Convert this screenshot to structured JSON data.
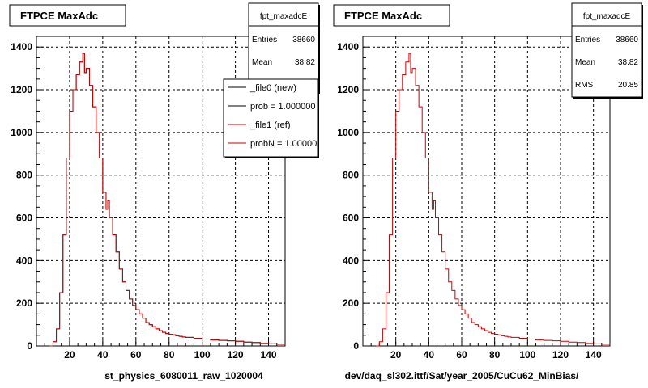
{
  "panels": [
    {
      "title": "FTPCE MaxAdc",
      "caption": "st_physics_6080011_raw_1020004",
      "stats": {
        "name": "fpt_maxadcE",
        "rows": [
          {
            "label": "Entries",
            "value": "38660"
          },
          {
            "label": "Mean",
            "value": "38.82"
          }
        ]
      },
      "legend": [
        {
          "label": "_file0 (new)",
          "color": "#000000"
        },
        {
          "label": "prob = 1.000000",
          "color": "#000000"
        },
        {
          "label": "_file1 (ref)",
          "color": "#cc0000"
        },
        {
          "label": "probN = 1.000000",
          "color": "#cc0000"
        }
      ]
    },
    {
      "title": "FTPCE MaxAdc",
      "caption": "dev/daq_sl302.ittf/Sat/year_2005/CuCu62_MinBias/",
      "stats": {
        "name": "fpt_maxadcE",
        "rows": [
          {
            "label": "Entries",
            "value": "38660"
          },
          {
            "label": "Mean",
            "value": "38.82"
          },
          {
            "label": "RMS",
            "value": "20.85"
          }
        ]
      },
      "legend": []
    }
  ],
  "colors": {
    "histogram": "#cc0000",
    "grid": "#000000",
    "frame": "#000000"
  },
  "chart_data": [
    {
      "type": "line",
      "title": "FTPCE MaxAdc",
      "xlabel": "st_physics_6080011_raw_1020004",
      "ylabel": "",
      "xlim": [
        0,
        150
      ],
      "ylim": [
        0,
        1450
      ],
      "x_ticks": [
        20,
        40,
        60,
        80,
        100,
        120,
        140
      ],
      "y_ticks": [
        0,
        200,
        400,
        600,
        800,
        1000,
        1200,
        1400
      ],
      "grid": true,
      "legend_position": "top-right",
      "series": [
        {
          "name": "_file0 (new)",
          "color": "#000000",
          "x": [
            8,
            10,
            12,
            14,
            16,
            18,
            20,
            22,
            24,
            26,
            28,
            29,
            30,
            32,
            34,
            36,
            38,
            40,
            42,
            43,
            44,
            46,
            48,
            50,
            52,
            54,
            56,
            58,
            60,
            62,
            64,
            66,
            68,
            70,
            72,
            74,
            76,
            78,
            80,
            82,
            84,
            86,
            88,
            90,
            95,
            100,
            105,
            110,
            115,
            120,
            125,
            130,
            135,
            140,
            145,
            150
          ],
          "y": [
            0,
            20,
            80,
            250,
            520,
            880,
            1100,
            1200,
            1270,
            1330,
            1370,
            1280,
            1300,
            1220,
            1120,
            1000,
            880,
            720,
            640,
            680,
            600,
            520,
            440,
            360,
            300,
            260,
            220,
            190,
            170,
            150,
            130,
            110,
            100,
            90,
            80,
            72,
            64,
            58,
            55,
            52,
            48,
            45,
            42,
            40,
            36,
            32,
            28,
            26,
            24,
            22,
            18,
            16,
            12,
            10,
            8,
            6
          ]
        },
        {
          "name": "_file1 (ref)",
          "color": "#cc0000",
          "x": [
            8,
            10,
            12,
            14,
            16,
            18,
            20,
            22,
            24,
            26,
            28,
            29,
            30,
            32,
            34,
            36,
            38,
            40,
            42,
            43,
            44,
            46,
            48,
            50,
            52,
            54,
            56,
            58,
            60,
            62,
            64,
            66,
            68,
            70,
            72,
            74,
            76,
            78,
            80,
            82,
            84,
            86,
            88,
            90,
            95,
            100,
            105,
            110,
            115,
            120,
            125,
            130,
            135,
            140,
            145,
            150
          ],
          "y": [
            0,
            20,
            80,
            250,
            520,
            880,
            1100,
            1200,
            1270,
            1330,
            1370,
            1280,
            1300,
            1220,
            1120,
            1000,
            880,
            720,
            640,
            680,
            600,
            520,
            440,
            360,
            300,
            260,
            220,
            190,
            170,
            150,
            130,
            110,
            100,
            90,
            80,
            72,
            64,
            58,
            55,
            52,
            48,
            45,
            42,
            40,
            36,
            32,
            28,
            26,
            24,
            22,
            18,
            16,
            12,
            10,
            8,
            6
          ]
        }
      ]
    },
    {
      "type": "line",
      "title": "FTPCE MaxAdc",
      "xlabel": "dev/daq_sl302.ittf/Sat/year_2005/CuCu62_MinBias/",
      "ylabel": "",
      "xlim": [
        0,
        150
      ],
      "ylim": [
        0,
        1450
      ],
      "x_ticks": [
        20,
        40,
        60,
        80,
        100,
        120,
        140
      ],
      "y_ticks": [
        0,
        200,
        400,
        600,
        800,
        1000,
        1200,
        1400
      ],
      "grid": true,
      "series": [
        {
          "color": "#cc0000",
          "x": [
            8,
            10,
            12,
            14,
            16,
            18,
            20,
            22,
            24,
            26,
            28,
            29,
            30,
            32,
            34,
            36,
            38,
            40,
            42,
            43,
            44,
            46,
            48,
            50,
            52,
            54,
            56,
            58,
            60,
            62,
            64,
            66,
            68,
            70,
            72,
            74,
            76,
            78,
            80,
            82,
            84,
            86,
            88,
            90,
            95,
            100,
            105,
            110,
            115,
            120,
            125,
            130,
            135,
            140,
            145,
            150
          ],
          "y": [
            0,
            20,
            80,
            250,
            520,
            880,
            1100,
            1200,
            1270,
            1330,
            1370,
            1280,
            1300,
            1220,
            1120,
            1000,
            880,
            720,
            640,
            680,
            600,
            520,
            440,
            360,
            300,
            260,
            220,
            190,
            170,
            150,
            130,
            110,
            100,
            90,
            80,
            72,
            64,
            58,
            55,
            52,
            48,
            45,
            42,
            40,
            36,
            32,
            28,
            26,
            24,
            22,
            18,
            16,
            12,
            10,
            8,
            6
          ]
        }
      ]
    }
  ]
}
